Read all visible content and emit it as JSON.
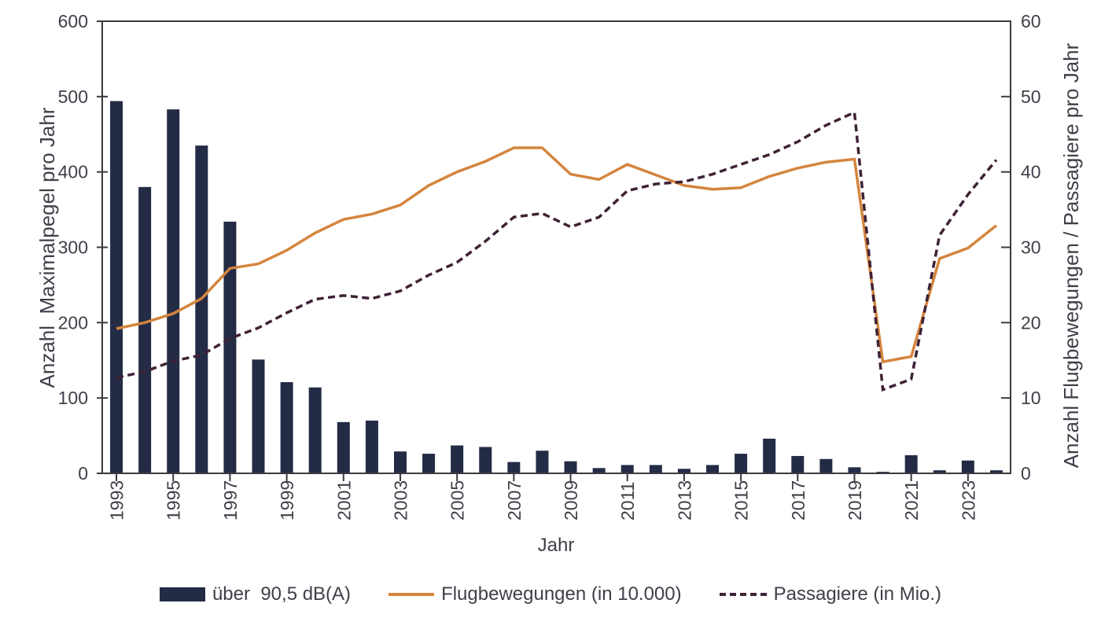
{
  "chart_data": {
    "type": "combo-bar-line",
    "title": "",
    "xlabel": "Jahr",
    "grid": false,
    "legend_position": "bottom",
    "categories": [
      1993,
      1994,
      1995,
      1996,
      1997,
      1998,
      1999,
      2000,
      2001,
      2002,
      2003,
      2004,
      2005,
      2006,
      2007,
      2008,
      2009,
      2010,
      2011,
      2012,
      2013,
      2014,
      2015,
      2016,
      2017,
      2018,
      2019,
      2020,
      2021,
      2022,
      2023,
      2024
    ],
    "x_tick_interval": 2,
    "x_tick_labels": [
      "1993",
      "1995",
      "1997",
      "1999",
      "2001",
      "2003",
      "2005",
      "2007",
      "2009",
      "2011",
      "2013",
      "2015",
      "2017",
      "2019",
      "2021",
      "2023"
    ],
    "left_axis": {
      "title": "Anzahl  Maximalpegel pro Jahr",
      "min": 0,
      "max": 600,
      "step": 100,
      "ticks": [
        0,
        100,
        200,
        300,
        400,
        500,
        600
      ]
    },
    "right_axis": {
      "title": "Anzahl Flugbewegungen / Passagiere pro Jahr",
      "min": 0,
      "max": 60,
      "step": 10,
      "ticks": [
        0,
        10,
        20,
        30,
        40,
        50,
        60
      ]
    },
    "series": [
      {
        "name": "über  90,5 dB(A)",
        "type": "bar",
        "axis": "left",
        "color": "#232B45",
        "values": [
          494,
          380,
          483,
          435,
          334,
          151,
          121,
          114,
          68,
          70,
          29,
          26,
          37,
          35,
          15,
          30,
          16,
          7,
          11,
          11,
          6,
          11,
          26,
          46,
          23,
          19,
          8,
          2,
          24,
          4,
          17,
          4
        ]
      },
      {
        "name": "Flugbewegungen (in 10.000)",
        "type": "line",
        "dash": false,
        "axis": "right",
        "color": "#D4853E",
        "values": [
          19.2,
          20.0,
          21.2,
          23.2,
          27.2,
          27.8,
          29.6,
          31.9,
          33.7,
          34.4,
          35.6,
          38.2,
          40.0,
          41.4,
          43.2,
          43.2,
          39.7,
          39.0,
          41.0,
          39.6,
          38.2,
          37.7,
          37.9,
          39.4,
          40.5,
          41.3,
          41.7,
          14.8,
          15.5,
          28.5,
          29.9,
          32.9
        ]
      },
      {
        "name": "Passagiere (in Mio.)",
        "type": "line",
        "dash": true,
        "axis": "right",
        "color": "#3F2236",
        "values": [
          12.7,
          13.5,
          14.9,
          15.7,
          17.9,
          19.3,
          21.3,
          23.1,
          23.6,
          23.2,
          24.2,
          26.3,
          28.0,
          30.8,
          34.0,
          34.5,
          32.7,
          34.0,
          37.5,
          38.4,
          38.7,
          39.7,
          41.0,
          42.3,
          44.0,
          46.2,
          47.9,
          11.1,
          12.5,
          31.6,
          37.0,
          41.6
        ]
      }
    ],
    "colors": {
      "axis_line": "#3A3A40",
      "text": "#3F4049",
      "background": "#FFFFFF"
    }
  }
}
